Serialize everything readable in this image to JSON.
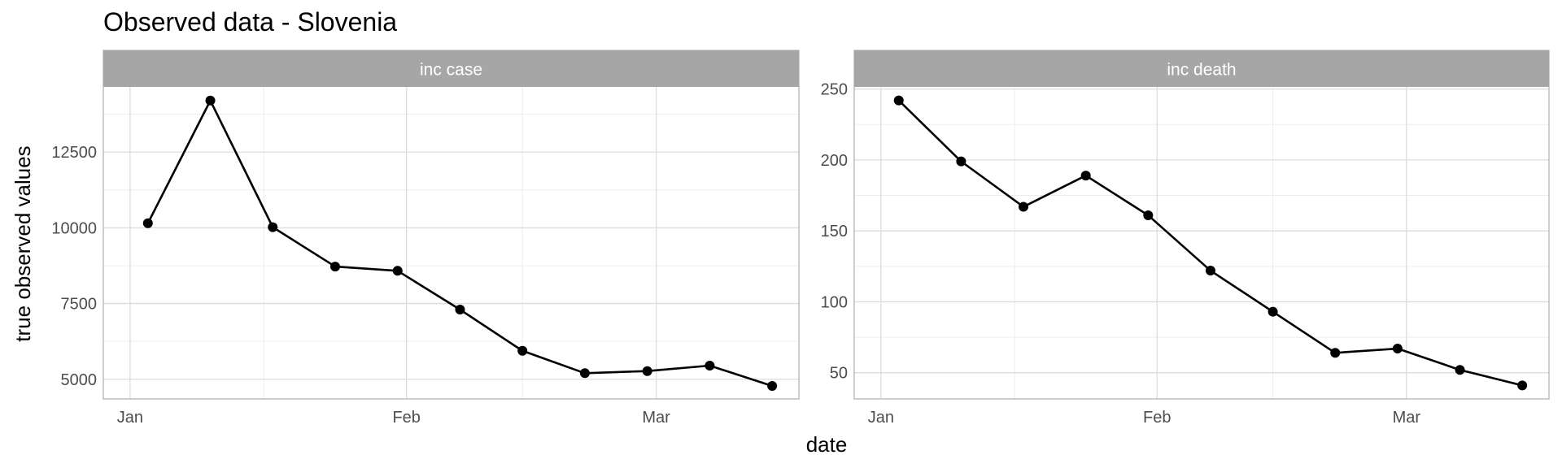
{
  "title": "Observed data - Slovenia",
  "xlabel": "date",
  "ylabel": "true observed values",
  "colors": {
    "strip": "#a6a6a6",
    "grid_major": "#dcdcdc",
    "grid_minor": "#ededed",
    "panel_border": "#b3b3b3",
    "line": "#000000",
    "point": "#000000"
  },
  "chart_data": [
    {
      "type": "line",
      "panel": "inc case",
      "x": [
        "2021-01-03",
        "2021-01-10",
        "2021-01-17",
        "2021-01-24",
        "2021-01-31",
        "2021-02-07",
        "2021-02-14",
        "2021-02-21",
        "2021-02-28",
        "2021-03-07",
        "2021-03-14"
      ],
      "y": [
        10150,
        14200,
        10020,
        8720,
        8580,
        7300,
        5940,
        5200,
        5270,
        5450,
        4780
      ],
      "xticks": [
        "Jan",
        "Feb",
        "Mar"
      ],
      "yticks": [
        "5000",
        "7500",
        "10000",
        "12500"
      ],
      "ylim": [
        4350,
        14650
      ],
      "grid": true
    },
    {
      "type": "line",
      "panel": "inc death",
      "x": [
        "2021-01-03",
        "2021-01-10",
        "2021-01-17",
        "2021-01-24",
        "2021-01-31",
        "2021-02-07",
        "2021-02-14",
        "2021-02-21",
        "2021-02-28",
        "2021-03-07",
        "2021-03-14"
      ],
      "y": [
        242,
        199,
        167,
        189,
        161,
        122,
        93,
        64,
        67,
        52,
        41
      ],
      "xticks": [
        "Jan",
        "Feb",
        "Mar"
      ],
      "yticks": [
        "50",
        "100",
        "150",
        "200",
        "250"
      ],
      "ylim": [
        31.5,
        251.5
      ],
      "grid": true
    }
  ]
}
